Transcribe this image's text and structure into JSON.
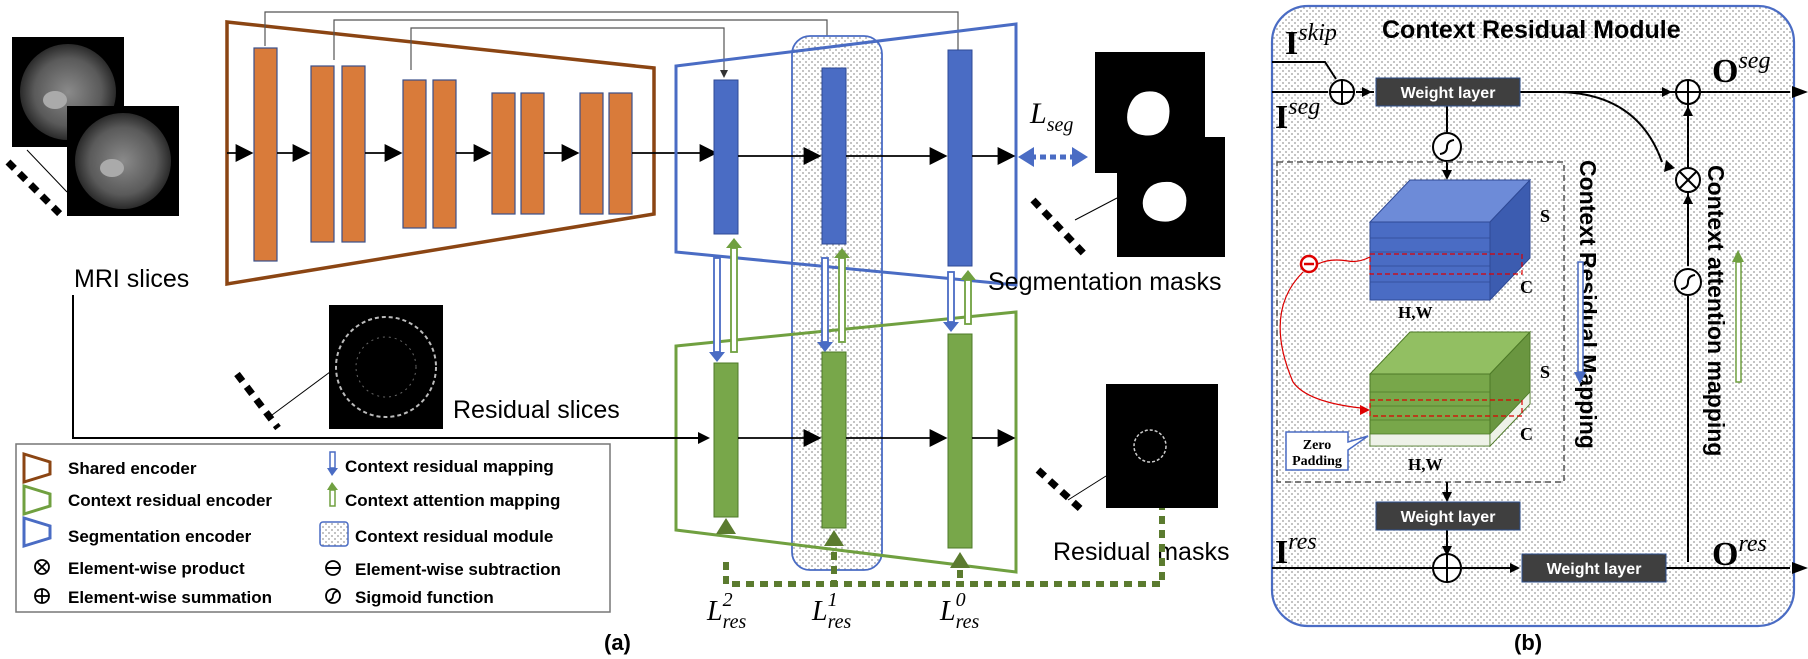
{
  "part_a": {
    "mri_label": "MRI slices",
    "residual_slices_label": "Residual slices",
    "segmentation_masks_label": "Segmentation masks",
    "residual_masks_label": "Residual masks",
    "loss_seg": {
      "base": "L",
      "sub": "seg"
    },
    "loss_res": [
      {
        "base": "L",
        "sup": "2",
        "sub": "res"
      },
      {
        "base": "L",
        "sup": "1",
        "sub": "res"
      },
      {
        "base": "L",
        "sup": "0",
        "sub": "res"
      }
    ],
    "caption": "(a)",
    "legend": {
      "shared_encoder": "Shared encoder",
      "context_residual_encoder": "Context residual encoder",
      "segmentation_encoder": "Segmentation encoder",
      "element_product": "Element-wise product",
      "element_summation": "Element-wise summation",
      "context_residual_mapping": "Context residual mapping",
      "context_attention_mapping": "Context attention mapping",
      "context_residual_module": "Context residual module",
      "element_subtraction": "Element-wise subtraction",
      "sigmoid": "Sigmoid function"
    }
  },
  "part_b": {
    "title": "Context Residual Module",
    "i_skip": {
      "base": "I",
      "sup": "skip"
    },
    "i_seg": {
      "base": "I",
      "sup": "seg"
    },
    "i_res": {
      "base": "I",
      "sup": "res"
    },
    "o_seg": {
      "base": "O",
      "sup": "seg"
    },
    "o_res": {
      "base": "O",
      "sup": "res"
    },
    "weight_layer": "Weight layer",
    "residual_mapping_label": "Context Residual Mapping",
    "attention_mapping_label": "Context attention mapping",
    "dim_s": "S",
    "dim_c": "C",
    "dim_hw": "H,W",
    "zero_padding": [
      "Zero",
      "Padding"
    ],
    "caption": "(b)"
  },
  "colors": {
    "shared_encoder": "#8B4513",
    "orange_block": "#D97B3A",
    "blue": "#4A6CC4",
    "blue_block": "#4A6CC4",
    "green": "#70A040",
    "green_block": "#78A74A",
    "dark_box": "#3F3F3F",
    "dashed_green": "#5B7B2F"
  }
}
